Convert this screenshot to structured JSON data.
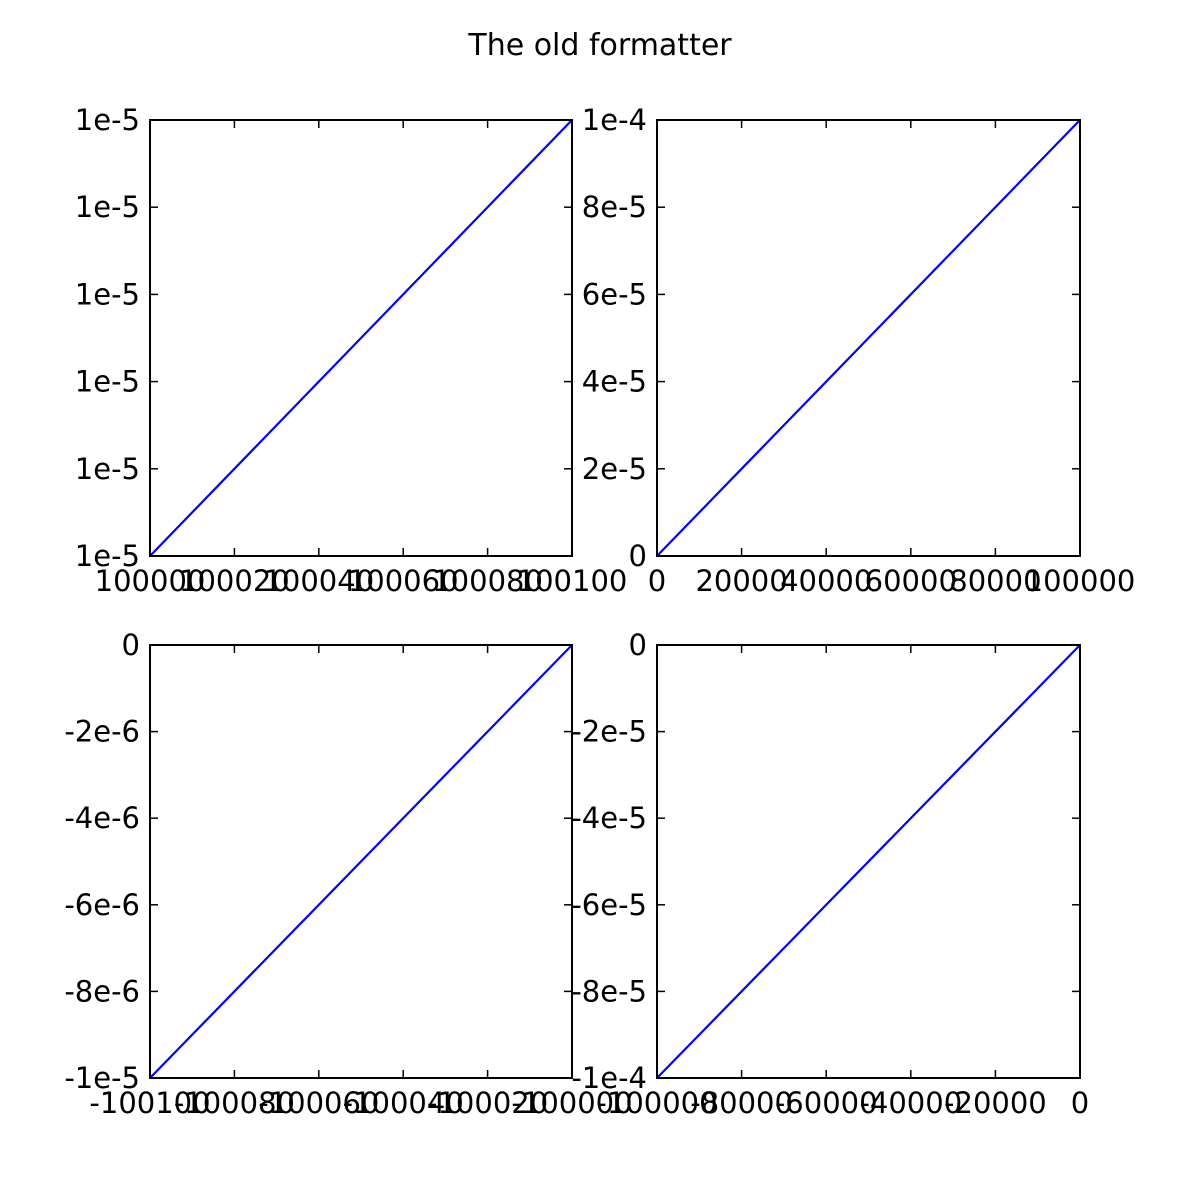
{
  "title": "The old formatter",
  "chart_data": [
    {
      "type": "line",
      "x": [
        100000,
        100100
      ],
      "series": [
        {
          "color": "#0000ff",
          "values": [
            1e-05,
            1.00001e-05
          ]
        }
      ],
      "xlim": [
        100000,
        100100
      ],
      "xticks": [
        100000,
        100020,
        100040,
        100060,
        100080,
        100100
      ],
      "ylim": [
        1e-05,
        1.00001e-05
      ],
      "yticks": [
        {
          "value": 1e-05,
          "label": "1e-5"
        },
        {
          "value": 1.000002e-05,
          "label": "1e-5"
        },
        {
          "value": 1.000004e-05,
          "label": "1e-5"
        },
        {
          "value": 1.000006e-05,
          "label": "1e-5"
        },
        {
          "value": 1.000008e-05,
          "label": "1e-5"
        },
        {
          "value": 1.00001e-05,
          "label": "1e-5"
        }
      ],
      "grid": false
    },
    {
      "type": "line",
      "x": [
        0,
        100000
      ],
      "series": [
        {
          "color": "#0000ff",
          "values": [
            0,
            0.0001
          ]
        }
      ],
      "xlim": [
        0,
        100000
      ],
      "xticks": [
        0,
        20000,
        40000,
        60000,
        80000,
        100000
      ],
      "ylim": [
        0,
        0.0001
      ],
      "yticks": [
        0,
        {
          "value": 2e-05,
          "label": "2e-5"
        },
        {
          "value": 4e-05,
          "label": "4e-5"
        },
        {
          "value": 6e-05,
          "label": "6e-5"
        },
        {
          "value": 8e-05,
          "label": "8e-5"
        },
        {
          "value": 0.0001,
          "label": "1e-4"
        }
      ],
      "grid": false
    },
    {
      "type": "line",
      "x": [
        -100100,
        -100000
      ],
      "series": [
        {
          "color": "#0000ff",
          "values": [
            -1e-05,
            0
          ]
        }
      ],
      "xlim": [
        -100100,
        -100000
      ],
      "xticks": [
        -100100,
        -100080,
        -100060,
        -100040,
        -100020,
        -100000
      ],
      "ylim": [
        -1e-05,
        0
      ],
      "yticks": [
        {
          "value": -1e-05,
          "label": "-1e-5"
        },
        {
          "value": -8e-06,
          "label": "-8e-6"
        },
        {
          "value": -6e-06,
          "label": "-6e-6"
        },
        {
          "value": -4e-06,
          "label": "-4e-6"
        },
        {
          "value": -2e-06,
          "label": "-2e-6"
        },
        0
      ],
      "grid": false
    },
    {
      "type": "line",
      "x": [
        -100000,
        0
      ],
      "series": [
        {
          "color": "#0000ff",
          "values": [
            -0.0001,
            0
          ]
        }
      ],
      "xlim": [
        -100000,
        0
      ],
      "xticks": [
        -100000,
        -80000,
        -60000,
        -40000,
        -20000,
        0
      ],
      "ylim": [
        -0.0001,
        0
      ],
      "yticks": [
        {
          "value": -0.0001,
          "label": "-1e-4"
        },
        {
          "value": -8e-05,
          "label": "-8e-5"
        },
        {
          "value": -6e-05,
          "label": "-6e-5"
        },
        {
          "value": -4e-05,
          "label": "-4e-5"
        },
        {
          "value": -2e-05,
          "label": "-2e-5"
        },
        0
      ],
      "grid": false
    }
  ]
}
